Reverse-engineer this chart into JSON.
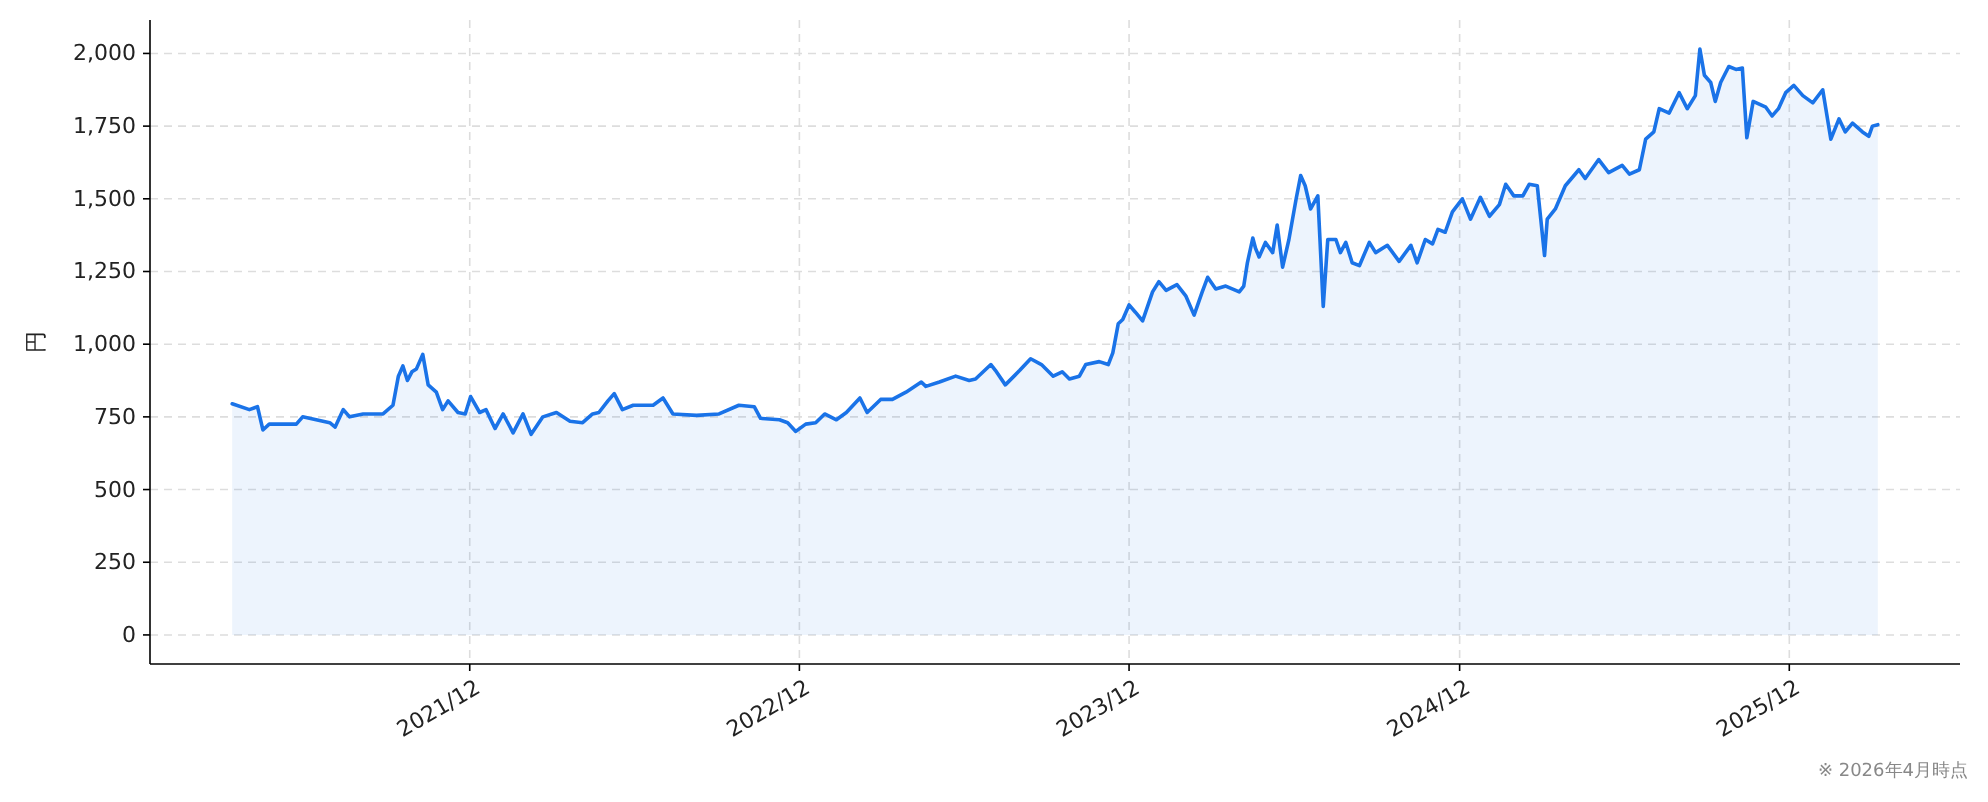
{
  "chart_data": {
    "type": "area",
    "ylabel": "円",
    "annotations": [
      "※ 2026年4月時点"
    ],
    "x": [
      "2021-03-13",
      "2021-04-01",
      "2021-04-10",
      "2021-04-16",
      "2021-04-23",
      "2021-05-23",
      "2021-05-30",
      "2021-06-29",
      "2021-07-05",
      "2021-07-14",
      "2021-07-21",
      "2021-08-05",
      "2021-08-27",
      "2021-09-07",
      "2021-09-13",
      "2021-09-18",
      "2021-09-23",
      "2021-09-28",
      "2021-10-03",
      "2021-10-10",
      "2021-10-16",
      "2021-10-25",
      "2021-11-01",
      "2021-11-07",
      "2021-11-18",
      "2021-11-26",
      "2021-12-02",
      "2021-12-12",
      "2021-12-19",
      "2021-12-29",
      "2022-01-07",
      "2022-01-18",
      "2022-01-29",
      "2022-02-07",
      "2022-02-20",
      "2022-03-07",
      "2022-03-22",
      "2022-04-05",
      "2022-04-16",
      "2022-04-23",
      "2022-05-03",
      "2022-05-10",
      "2022-05-19",
      "2022-05-31",
      "2022-06-22",
      "2022-07-03",
      "2022-07-14",
      "2022-08-09",
      "2022-09-03",
      "2022-09-25",
      "2022-10-12",
      "2022-10-19",
      "2022-11-09",
      "2022-11-18",
      "2022-11-27",
      "2022-12-08",
      "2022-12-19",
      "2022-12-29",
      "2023-01-11",
      "2023-01-22",
      "2023-02-06",
      "2023-02-14",
      "2023-03-01",
      "2023-03-14",
      "2023-03-29",
      "2023-04-15",
      "2023-04-20",
      "2023-05-05",
      "2023-05-23",
      "2023-06-07",
      "2023-06-14",
      "2023-07-01",
      "2023-07-06",
      "2023-07-17",
      "2023-08-02",
      "2023-08-14",
      "2023-08-26",
      "2023-09-08",
      "2023-09-18",
      "2023-09-26",
      "2023-10-07",
      "2023-10-14",
      "2023-10-29",
      "2023-11-08",
      "2023-11-13",
      "2023-11-19",
      "2023-11-24",
      "2023-12-01",
      "2023-12-08",
      "2023-12-16",
      "2023-12-27",
      "2024-01-03",
      "2024-01-11",
      "2024-01-23",
      "2024-02-02",
      "2024-02-11",
      "2024-02-20",
      "2024-02-26",
      "2024-03-06",
      "2024-03-17",
      "2024-04-01",
      "2024-04-06",
      "2024-04-10",
      "2024-04-16",
      "2024-04-19",
      "2024-04-23",
      "2024-04-30",
      "2024-05-08",
      "2024-05-13",
      "2024-05-19",
      "2024-05-26",
      "2024-06-03",
      "2024-06-08",
      "2024-06-13",
      "2024-06-19",
      "2024-06-27",
      "2024-07-03",
      "2024-07-08",
      "2024-07-17",
      "2024-07-22",
      "2024-07-28",
      "2024-08-04",
      "2024-08-12",
      "2024-08-23",
      "2024-08-30",
      "2024-09-12",
      "2024-09-25",
      "2024-10-08",
      "2024-10-15",
      "2024-10-24",
      "2024-11-01",
      "2024-11-07",
      "2024-11-15",
      "2024-11-23",
      "2024-12-04",
      "2024-12-13",
      "2024-12-24",
      "2025-01-03",
      "2025-01-14",
      "2025-01-21",
      "2025-01-30",
      "2025-02-09",
      "2025-02-16",
      "2025-02-25",
      "2025-03-05",
      "2025-03-08",
      "2025-03-17",
      "2025-03-28",
      "2025-04-12",
      "2025-04-19",
      "2025-05-04",
      "2025-05-15",
      "2025-05-30",
      "2025-06-07",
      "2025-06-18",
      "2025-06-25",
      "2025-07-04",
      "2025-07-10",
      "2025-07-21",
      "2025-08-01",
      "2025-08-10",
      "2025-08-19",
      "2025-08-24",
      "2025-08-29",
      "2025-09-05",
      "2025-09-10",
      "2025-09-16",
      "2025-09-25",
      "2025-10-03",
      "2025-10-10",
      "2025-10-15",
      "2025-10-22",
      "2025-11-05",
      "2025-11-12",
      "2025-11-19",
      "2025-11-27",
      "2025-12-06",
      "2025-12-16",
      "2025-12-27",
      "2026-01-07",
      "2026-01-16",
      "2026-01-25",
      "2026-02-01",
      "2026-02-09",
      "2026-02-20",
      "2026-02-27",
      "2026-03-03",
      "2026-03-09"
    ],
    "series": [
      {
        "color": "#1a73e8",
        "values": [
          795,
          775,
          785,
          705,
          725,
          725,
          750,
          730,
          715,
          775,
          750,
          760,
          760,
          790,
          890,
          925,
          875,
          905,
          915,
          965,
          860,
          835,
          775,
          805,
          765,
          760,
          820,
          765,
          775,
          710,
          760,
          695,
          760,
          690,
          750,
          765,
          735,
          730,
          760,
          765,
          805,
          830,
          775,
          790,
          790,
          815,
          760,
          755,
          760,
          790,
          785,
          745,
          740,
          730,
          700,
          725,
          730,
          760,
          740,
          765,
          815,
          765,
          810,
          810,
          835,
          870,
          855,
          870,
          890,
          875,
          880,
          930,
          910,
          860,
          910,
          950,
          930,
          890,
          905,
          880,
          890,
          930,
          940,
          930,
          970,
          1070,
          1085,
          1135,
          1110,
          1080,
          1180,
          1215,
          1185,
          1205,
          1165,
          1100,
          1180,
          1230,
          1190,
          1200,
          1180,
          1200,
          1280,
          1365,
          1330,
          1300,
          1350,
          1315,
          1410,
          1265,
          1360,
          1500,
          1580,
          1545,
          1465,
          1510,
          1130,
          1360,
          1360,
          1315,
          1350,
          1280,
          1270,
          1350,
          1315,
          1340,
          1285,
          1340,
          1280,
          1360,
          1345,
          1395,
          1385,
          1455,
          1500,
          1430,
          1505,
          1440,
          1480,
          1550,
          1510,
          1510,
          1550,
          1545,
          1305,
          1430,
          1465,
          1545,
          1600,
          1570,
          1635,
          1590,
          1615,
          1585,
          1600,
          1705,
          1730,
          1810,
          1795,
          1865,
          1810,
          1855,
          2015,
          1925,
          1900,
          1835,
          1900,
          1955,
          1945,
          1950,
          1710,
          1835,
          1815,
          1785,
          1810,
          1865,
          1890,
          1855,
          1830,
          1875,
          1705,
          1775,
          1730,
          1760,
          1730,
          1715,
          1750,
          1755
        ]
      }
    ],
    "xlim": [
      "2020-12-12",
      "2026-06-08"
    ],
    "ylim": [
      -100,
      2115
    ],
    "xticks": [
      {
        "value": "2021-12",
        "label": "2021/12"
      },
      {
        "value": "2022-12",
        "label": "2022/12"
      },
      {
        "value": "2023-12",
        "label": "2023/12"
      },
      {
        "value": "2024-12",
        "label": "2024/12"
      },
      {
        "value": "2025-12",
        "label": "2025/12"
      }
    ],
    "yticks": [
      0,
      250,
      500,
      750,
      {
        "value": 1000,
        "label": "1,000"
      },
      {
        "value": 1250,
        "label": "1,250"
      },
      {
        "value": 1500,
        "label": "1,500"
      },
      {
        "value": 1750,
        "label": "1,750"
      },
      {
        "value": 2000,
        "label": "2,000"
      }
    ],
    "grid": true
  }
}
